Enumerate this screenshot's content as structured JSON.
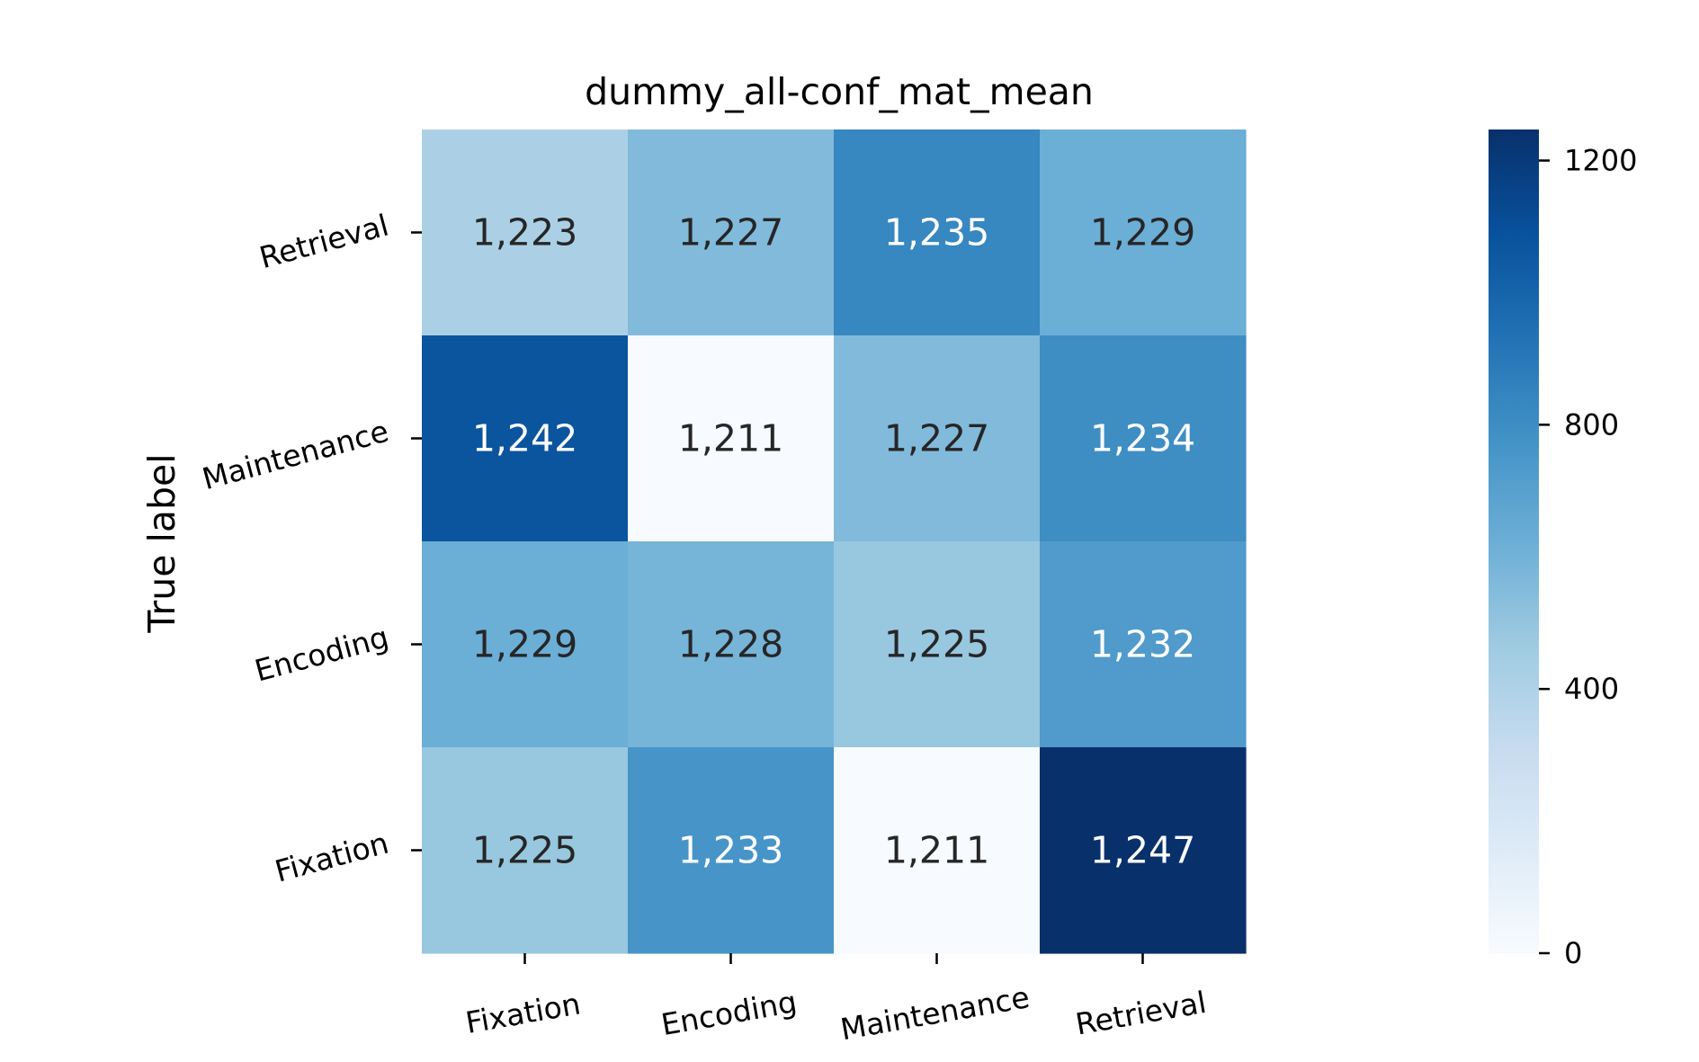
{
  "chart_data": {
    "type": "heatmap",
    "title": "dummy_all-conf_mat_mean",
    "ylabel": "True label",
    "xlabel": "",
    "x_categories": [
      "Fixation",
      "Encoding",
      "Maintenance",
      "Retrieval"
    ],
    "y_categories_top_to_bottom": [
      "Retrieval",
      "Maintenance",
      "Encoding",
      "Fixation"
    ],
    "values_top_to_bottom": [
      [
        1223,
        1227,
        1235,
        1229
      ],
      [
        1242,
        1211,
        1227,
        1234
      ],
      [
        1229,
        1228,
        1225,
        1232
      ],
      [
        1225,
        1233,
        1211,
        1247
      ]
    ],
    "cell_labels_top_to_bottom": [
      [
        "1,223",
        "1,227",
        "1,235",
        "1,229"
      ],
      [
        "1,242",
        "1,211",
        "1,227",
        "1,234"
      ],
      [
        "1,229",
        "1,228",
        "1,225",
        "1,232"
      ],
      [
        "1,225",
        "1,233",
        "1,211",
        "1,247"
      ]
    ],
    "color_min": 1211,
    "color_max": 1247,
    "colormap": "Blues",
    "colormap_stops": [
      "#f7fbff",
      "#deebf7",
      "#c6dbef",
      "#9ecae1",
      "#6baed6",
      "#4292c6",
      "#2171b5",
      "#08519c",
      "#08306b"
    ],
    "text_color_light": "#ffffff",
    "text_color_dark": "#262626",
    "colorbar": {
      "range": [
        0,
        1247
      ],
      "ticks": [
        0,
        400,
        800,
        1200
      ],
      "tick_labels": [
        "0",
        "400",
        "800",
        "1200"
      ]
    },
    "grid": false
  }
}
